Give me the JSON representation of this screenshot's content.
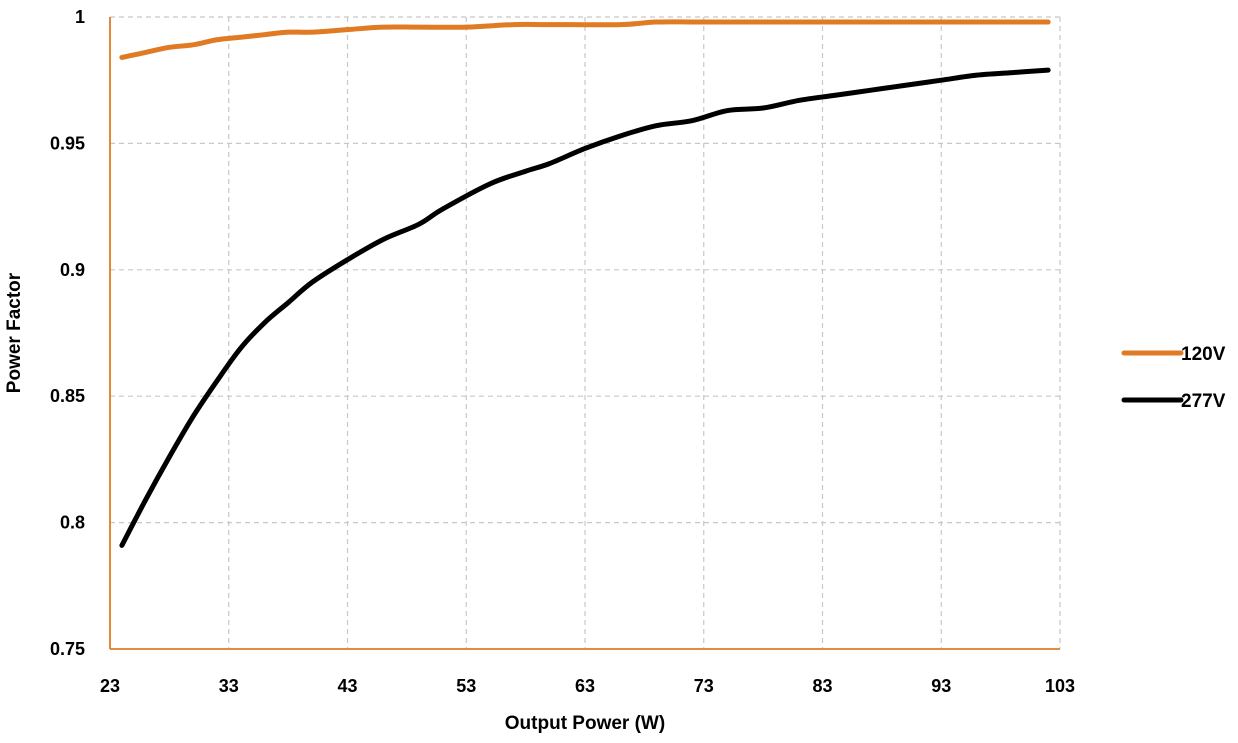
{
  "chart_data": {
    "type": "line",
    "title": "",
    "xlabel": "Output Power (W)",
    "ylabel": "Power Factor",
    "xlim": [
      23,
      103
    ],
    "ylim": [
      0.75,
      1
    ],
    "xticks": [
      "23",
      "33",
      "43",
      "53",
      "63",
      "73",
      "83",
      "93",
      "103"
    ],
    "yticks": [
      "0.75",
      "0.8",
      "0.85",
      "0.9",
      "0.95",
      "1"
    ],
    "grid": true,
    "legend_position": "right",
    "series": [
      {
        "name": "120V",
        "color": "#e07b24",
        "x": [
          24,
          26,
          28,
          30,
          32,
          34,
          36,
          38,
          40,
          43,
          46,
          49,
          53,
          57,
          60,
          66,
          69,
          73,
          83,
          93,
          102
        ],
        "y": [
          0.984,
          0.986,
          0.988,
          0.989,
          0.991,
          0.992,
          0.993,
          0.994,
          0.994,
          0.995,
          0.996,
          0.996,
          0.996,
          0.997,
          0.997,
          0.997,
          0.998,
          0.998,
          0.998,
          0.998,
          0.998
        ]
      },
      {
        "name": "277V",
        "color": "#000000",
        "x": [
          24,
          26,
          28,
          30,
          32,
          34,
          36,
          38,
          40,
          43,
          46,
          49,
          51,
          55,
          58,
          60,
          63,
          66,
          69,
          72,
          75,
          78,
          81,
          84,
          87,
          90,
          93,
          96,
          99,
          102
        ],
        "y": [
          0.791,
          0.809,
          0.826,
          0.842,
          0.856,
          0.869,
          0.879,
          0.887,
          0.895,
          0.904,
          0.912,
          0.918,
          0.924,
          0.934,
          0.939,
          0.942,
          0.948,
          0.953,
          0.957,
          0.959,
          0.963,
          0.964,
          0.967,
          0.969,
          0.971,
          0.973,
          0.975,
          0.977,
          0.978,
          0.979
        ]
      }
    ]
  }
}
